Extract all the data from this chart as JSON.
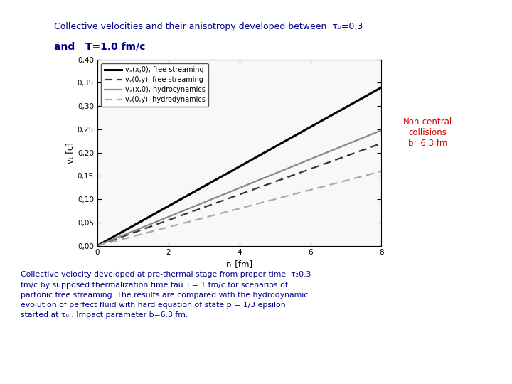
{
  "title_line1": "Collective velocities and their anisotropy developed between  τ₀=0.3",
  "title_line2": "and   Τ=1.0 fm/c",
  "title_color": "#00008B",
  "xlabel": "rₜ [fm]",
  "ylabel": "vₜ [c]",
  "xlim": [
    0,
    8
  ],
  "ylim": [
    0.0,
    0.4
  ],
  "xticks": [
    0,
    2,
    4,
    6,
    8
  ],
  "yticks": [
    0.0,
    0.05,
    0.1,
    0.15,
    0.2,
    0.25,
    0.3,
    0.35,
    0.4
  ],
  "ytick_labels": [
    "0,00",
    "0,05",
    "0,10",
    "0,15",
    "0,20",
    "0,25",
    "0,30",
    "0,35",
    "0,40"
  ],
  "xtick_labels": [
    "0",
    "2",
    "4",
    "6",
    "8"
  ],
  "line1_slope": 0.0425,
  "line2_slope": 0.0275,
  "line3_slope": 0.031,
  "line4_slope": 0.02,
  "line1_color": "#000000",
  "line2_color": "#333333",
  "line3_color": "#888888",
  "line4_color": "#aaaaaa",
  "legend_labels": [
    "vₓ(x,0), free streaming",
    "vᵧ(0,y), free streaming",
    "vₓ(x,0), hydrocynamics",
    "vᵧ(0,y), hydrodynamics"
  ],
  "annotation_text": "Non-central\ncollisions\nb=6.3 fm",
  "annotation_color": "#CC0000",
  "bg_color": "#ffffff",
  "plot_bg_color": "#f8f8f8",
  "header_gold_color": "#FFD700",
  "header_red_color": "#CC0000",
  "header_blue_color": "#0000CC",
  "bottom_text_color": "#00008B",
  "bottom_text_line1": "Collective velocity developed at pre-thermal stage from proper time  τ₂0.3",
  "bottom_text_line2": "fm/c by supposed thermalization time tau_i = 1 fm/c for scenarios of",
  "bottom_text_line3": "partonic free streaming. The results are compared with the hydrodynamic",
  "bottom_text_line4": "evolution of perfect fluid with hard equation of state p = 1/3 epsilon",
  "bottom_text_line5": "started at τ₀ . Impact parameter b=6.3 fm."
}
